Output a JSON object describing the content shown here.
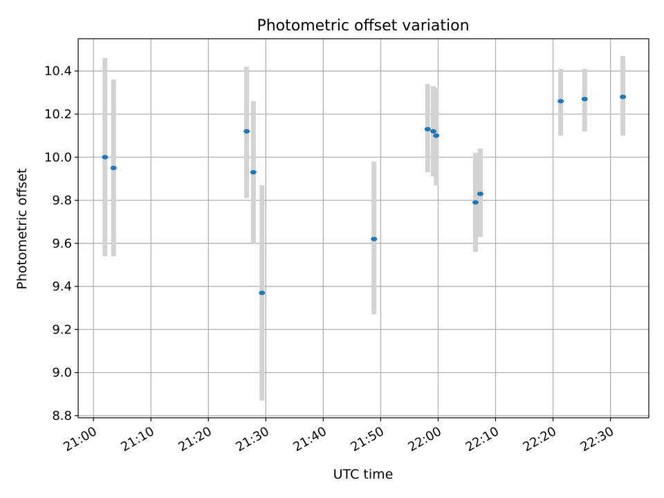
{
  "chart_data": {
    "type": "scatter",
    "title": "Photometric offset variation",
    "xlabel": "UTC time",
    "ylabel": "Photometric offset",
    "x_ticks": [
      "21:00",
      "21:10",
      "21:20",
      "21:30",
      "21:40",
      "21:50",
      "22:00",
      "22:10",
      "22:20",
      "22:30"
    ],
    "xlim": [
      "20:57:20",
      "22:36:40"
    ],
    "y_ticks": [
      "8.8",
      "9.0",
      "9.2",
      "9.4",
      "9.6",
      "9.8",
      "10.0",
      "10.2",
      "10.4"
    ],
    "ylim": [
      8.79,
      10.55
    ],
    "grid": true,
    "points": [
      {
        "x": "21:02:00",
        "y": 10.0,
        "err_low": 9.54,
        "err_high": 10.46
      },
      {
        "x": "21:03:30",
        "y": 9.95,
        "err_low": 9.54,
        "err_high": 10.36
      },
      {
        "x": "21:26:40",
        "y": 10.12,
        "err_low": 9.81,
        "err_high": 10.42
      },
      {
        "x": "21:27:50",
        "y": 9.93,
        "err_low": 9.6,
        "err_high": 10.26
      },
      {
        "x": "21:29:20",
        "y": 9.37,
        "err_low": 8.87,
        "err_high": 9.87
      },
      {
        "x": "21:48:50",
        "y": 9.62,
        "err_low": 9.27,
        "err_high": 9.98
      },
      {
        "x": "21:58:10",
        "y": 10.13,
        "err_low": 9.93,
        "err_high": 10.34
      },
      {
        "x": "21:59:10",
        "y": 10.12,
        "err_low": 9.91,
        "err_high": 10.33
      },
      {
        "x": "21:59:40",
        "y": 10.1,
        "err_low": 9.87,
        "err_high": 10.32
      },
      {
        "x": "22:06:30",
        "y": 9.79,
        "err_low": 9.56,
        "err_high": 10.02
      },
      {
        "x": "22:07:20",
        "y": 9.83,
        "err_low": 9.63,
        "err_high": 10.04
      },
      {
        "x": "22:21:20",
        "y": 10.26,
        "err_low": 10.1,
        "err_high": 10.41
      },
      {
        "x": "22:25:30",
        "y": 10.27,
        "err_low": 10.12,
        "err_high": 10.41
      },
      {
        "x": "22:32:10",
        "y": 10.28,
        "err_low": 10.1,
        "err_high": 10.47
      }
    ],
    "colors": {
      "marker": "#1f77b4",
      "errorbar": "#d3d3d3",
      "grid": "#b0b0b0",
      "axes": "#000000"
    }
  }
}
